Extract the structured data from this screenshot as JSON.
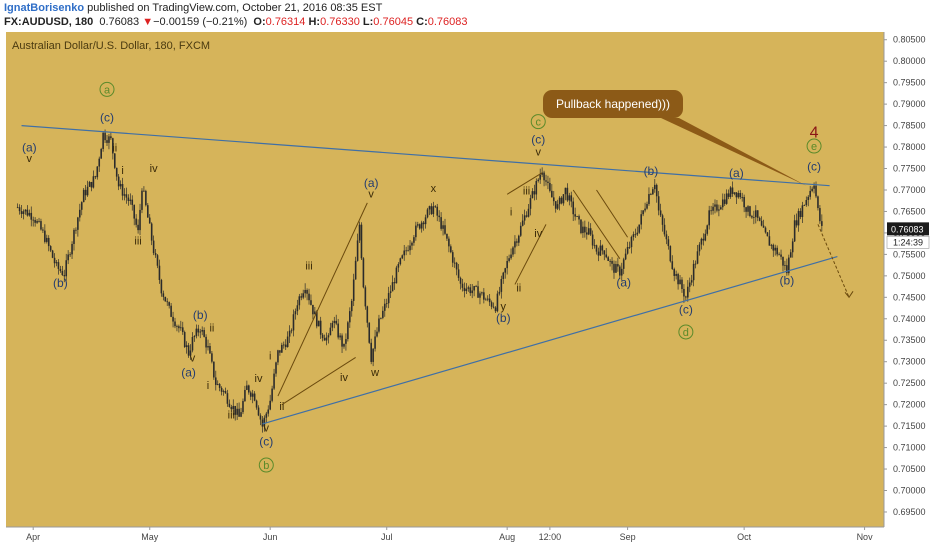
{
  "header": {
    "author": "IgnatBorisenko",
    "published_text": "published on TradingView.com, October 21, 2016 08:35 EST",
    "symbol": "FX:AUDUSD, 180",
    "last": "0.76083",
    "change_arrow": "▼",
    "change": "−0.00159 (−0.21%)",
    "o_label": "O:",
    "o_value": "0.76314",
    "h_label": "H:",
    "h_value": "0.76330",
    "l_label": "L:",
    "l_value": "0.76045",
    "c_label": "C:",
    "c_value": "0.76083"
  },
  "colors": {
    "background": "#d6b45a",
    "candle": "#2b2b2b",
    "trendline": "#3f6fa6",
    "wave_line": "#6b4a0e",
    "wave_label": "#253d70",
    "minor_label": "#3a2a08",
    "circle_label": "#5b8a2a",
    "callout_fill": "#8c5a17",
    "callout_text": "#ffffff",
    "wave4_label": "#8a1616",
    "last_price_box": "#1b1b1b",
    "axis_text": "#444444"
  },
  "chart_data": {
    "type": "candlestick",
    "title": "Australian Dollar/U.S. Dollar, 180, FXCM",
    "xlabel": "",
    "ylabel": "",
    "x_ticks": [
      "Apr",
      "May",
      "Jun",
      "Jul",
      "Aug",
      "12:00",
      "Sep",
      "Oct",
      "Nov"
    ],
    "y_ticks": [
      "0.80500",
      "0.80000",
      "0.79500",
      "0.79000",
      "0.78500",
      "0.78000",
      "0.77500",
      "0.77000",
      "0.76500",
      "0.76000",
      "0.75500",
      "0.75000",
      "0.74500",
      "0.74000",
      "0.73500",
      "0.73000",
      "0.72500",
      "0.72000",
      "0.71500",
      "0.71000",
      "0.70500",
      "0.70000",
      "0.69500"
    ],
    "ylim": [
      0.6915,
      0.8068
    ],
    "last_price": "0.76083",
    "countdown": "1:24:39",
    "price_path": [
      [
        "2016-03-28",
        0.766
      ],
      [
        "2016-04-01",
        0.764
      ],
      [
        "2016-04-04",
        0.759
      ],
      [
        "2016-04-07",
        0.752
      ],
      [
        "2016-04-09",
        0.7505
      ],
      [
        "2016-04-12",
        0.762
      ],
      [
        "2016-04-14",
        0.769
      ],
      [
        "2016-04-17",
        0.773
      ],
      [
        "2016-04-19",
        0.783
      ],
      [
        "2016-04-21",
        0.7815
      ],
      [
        "2016-04-23",
        0.771
      ],
      [
        "2016-04-26",
        0.767
      ],
      [
        "2016-04-28",
        0.76
      ],
      [
        "2016-04-29",
        0.771
      ],
      [
        "2016-05-02",
        0.756
      ],
      [
        "2016-05-04",
        0.747
      ],
      [
        "2016-05-06",
        0.742
      ],
      [
        "2016-05-09",
        0.737
      ],
      [
        "2016-05-11",
        0.732
      ],
      [
        "2016-05-12",
        0.735
      ],
      [
        "2016-05-14",
        0.738
      ],
      [
        "2016-05-16",
        0.733
      ],
      [
        "2016-05-18",
        0.725
      ],
      [
        "2016-05-20",
        0.723
      ],
      [
        "2016-05-22",
        0.72
      ],
      [
        "2016-05-24",
        0.717
      ],
      [
        "2016-05-26",
        0.724
      ],
      [
        "2016-05-28",
        0.722
      ],
      [
        "2016-05-30",
        0.715
      ],
      [
        "2016-06-01",
        0.721
      ],
      [
        "2016-06-03",
        0.732
      ],
      [
        "2016-06-06",
        0.736
      ],
      [
        "2016-06-08",
        0.744
      ],
      [
        "2016-06-10",
        0.748
      ],
      [
        "2016-06-12",
        0.742
      ],
      [
        "2016-06-14",
        0.737
      ],
      [
        "2016-06-16",
        0.735
      ],
      [
        "2016-06-17",
        0.74
      ],
      [
        "2016-06-20",
        0.733
      ],
      [
        "2016-06-22",
        0.744
      ],
      [
        "2016-06-24",
        0.762
      ],
      [
        "2016-06-25",
        0.748
      ],
      [
        "2016-06-27",
        0.731
      ],
      [
        "2016-06-29",
        0.739
      ],
      [
        "2016-07-01",
        0.744
      ],
      [
        "2016-07-04",
        0.752
      ],
      [
        "2016-07-06",
        0.756
      ],
      [
        "2016-07-08",
        0.76
      ],
      [
        "2016-07-11",
        0.764
      ],
      [
        "2016-07-13",
        0.766
      ],
      [
        "2016-07-15",
        0.762
      ],
      [
        "2016-07-18",
        0.754
      ],
      [
        "2016-07-20",
        0.748
      ],
      [
        "2016-07-22",
        0.747
      ],
      [
        "2016-07-25",
        0.746
      ],
      [
        "2016-07-27",
        0.744
      ],
      [
        "2016-07-29",
        0.743
      ],
      [
        "2016-08-01",
        0.753
      ],
      [
        "2016-08-02",
        0.756
      ],
      [
        "2016-08-04",
        0.76
      ],
      [
        "2016-08-06",
        0.765
      ],
      [
        "2016-08-08",
        0.77
      ],
      [
        "2016-08-10",
        0.775
      ],
      [
        "2016-08-12",
        0.769
      ],
      [
        "2016-08-14",
        0.766
      ],
      [
        "2016-08-16",
        0.77
      ],
      [
        "2016-08-18",
        0.765
      ],
      [
        "2016-08-20",
        0.761
      ],
      [
        "2016-08-22",
        0.76
      ],
      [
        "2016-08-24",
        0.756
      ],
      [
        "2016-08-26",
        0.756
      ],
      [
        "2016-08-28",
        0.752
      ],
      [
        "2016-08-30",
        0.751
      ],
      [
        "2016-09-01",
        0.756
      ],
      [
        "2016-09-04",
        0.762
      ],
      [
        "2016-09-06",
        0.768
      ],
      [
        "2016-09-08",
        0.772
      ],
      [
        "2016-09-09",
        0.765
      ],
      [
        "2016-09-11",
        0.758
      ],
      [
        "2016-09-13",
        0.751
      ],
      [
        "2016-09-15",
        0.747
      ],
      [
        "2016-09-16",
        0.745
      ],
      [
        "2016-09-18",
        0.752
      ],
      [
        "2016-09-20",
        0.758
      ],
      [
        "2016-09-22",
        0.764
      ],
      [
        "2016-09-24",
        0.766
      ],
      [
        "2016-09-26",
        0.768
      ],
      [
        "2016-09-28",
        0.77
      ],
      [
        "2016-09-30",
        0.769
      ],
      [
        "2016-10-02",
        0.765
      ],
      [
        "2016-10-04",
        0.764
      ],
      [
        "2016-10-06",
        0.76
      ],
      [
        "2016-10-08",
        0.757
      ],
      [
        "2016-10-10",
        0.755
      ],
      [
        "2016-10-12",
        0.751
      ],
      [
        "2016-10-14",
        0.762
      ],
      [
        "2016-10-16",
        0.766
      ],
      [
        "2016-10-18",
        0.77
      ],
      [
        "2016-10-19",
        0.772
      ],
      [
        "2016-10-20",
        0.765
      ],
      [
        "2016-10-21",
        0.7608
      ]
    ],
    "trendlines": [
      {
        "name": "upper",
        "points": [
          [
            "2016-03-29",
            0.785
          ],
          [
            "2016-10-23",
            0.771
          ]
        ]
      },
      {
        "name": "lower",
        "points": [
          [
            "2016-05-30",
            0.7155
          ],
          [
            "2016-10-25",
            0.7545
          ]
        ]
      }
    ],
    "wave_lines": [
      [
        [
          "2016-06-03",
          0.722
        ],
        [
          "2016-06-26",
          0.767
        ]
      ],
      [
        [
          "2016-06-04",
          0.72
        ],
        [
          "2016-06-23",
          0.731
        ]
      ],
      [
        [
          "2016-08-01",
          0.769
        ],
        [
          "2016-08-10",
          0.774
        ]
      ],
      [
        [
          "2016-08-03",
          0.748
        ],
        [
          "2016-08-11",
          0.762
        ]
      ],
      [
        [
          "2016-08-18",
          0.77
        ],
        [
          "2016-08-30",
          0.754
        ]
      ],
      [
        [
          "2016-08-24",
          0.77
        ],
        [
          "2016-09-01",
          0.759
        ]
      ]
    ],
    "projection": [
      [
        "2016-10-20",
        0.762
      ],
      [
        "2016-10-28",
        0.745
      ]
    ],
    "wave_labels": [
      {
        "text": "(a)",
        "x": "2016-03-31",
        "y": 0.779,
        "style": "wave"
      },
      {
        "text": "v",
        "x": "2016-03-31",
        "y": 0.7765,
        "style": "minor"
      },
      {
        "text": "(b)",
        "x": "2016-04-08",
        "y": 0.7474,
        "style": "wave"
      },
      {
        "text": "a",
        "x": "2016-04-20",
        "y": 0.7925,
        "style": "circle"
      },
      {
        "text": "(c)",
        "x": "2016-04-20",
        "y": 0.786,
        "style": "wave"
      },
      {
        "text": "ii",
        "x": "2016-04-22",
        "y": 0.779,
        "style": "minor"
      },
      {
        "text": "i",
        "x": "2016-04-24",
        "y": 0.7737,
        "style": "minor"
      },
      {
        "text": "iii",
        "x": "2016-04-28",
        "y": 0.7573,
        "style": "minor"
      },
      {
        "text": "iv",
        "x": "2016-05-02",
        "y": 0.7742,
        "style": "minor"
      },
      {
        "text": "(b)",
        "x": "2016-05-14",
        "y": 0.74,
        "style": "wave"
      },
      {
        "text": "ii",
        "x": "2016-05-17",
        "y": 0.737,
        "style": "minor"
      },
      {
        "text": "v",
        "x": "2016-05-12",
        "y": 0.73,
        "style": "minor"
      },
      {
        "text": "(a)",
        "x": "2016-05-11",
        "y": 0.7265,
        "style": "wave"
      },
      {
        "text": "i",
        "x": "2016-05-16",
        "y": 0.7237,
        "style": "minor"
      },
      {
        "text": "iii",
        "x": "2016-05-22",
        "y": 0.7168,
        "style": "minor"
      },
      {
        "text": "iv",
        "x": "2016-05-29",
        "y": 0.7253,
        "style": "minor"
      },
      {
        "text": "v",
        "x": "2016-05-31",
        "y": 0.7138,
        "style": "minor"
      },
      {
        "text": "(c)",
        "x": "2016-05-31",
        "y": 0.7105,
        "style": "wave"
      },
      {
        "text": "b",
        "x": "2016-05-31",
        "y": 0.705,
        "style": "circle"
      },
      {
        "text": "i",
        "x": "2016-06-01",
        "y": 0.7305,
        "style": "minor"
      },
      {
        "text": "ii",
        "x": "2016-06-04",
        "y": 0.7187,
        "style": "minor"
      },
      {
        "text": "iii",
        "x": "2016-06-11",
        "y": 0.7515,
        "style": "minor"
      },
      {
        "text": "iv",
        "x": "2016-06-20",
        "y": 0.7255,
        "style": "minor"
      },
      {
        "text": "(a)",
        "x": "2016-06-27",
        "y": 0.7707,
        "style": "wave"
      },
      {
        "text": "v",
        "x": "2016-06-27",
        "y": 0.7683,
        "style": "minor"
      },
      {
        "text": "w",
        "x": "2016-06-28",
        "y": 0.7267,
        "style": "minor"
      },
      {
        "text": "x",
        "x": "2016-07-13",
        "y": 0.7695,
        "style": "minor"
      },
      {
        "text": "y",
        "x": "2016-07-31",
        "y": 0.742,
        "style": "minor"
      },
      {
        "text": "(b)",
        "x": "2016-07-31",
        "y": 0.7393,
        "style": "wave"
      },
      {
        "text": "i",
        "x": "2016-08-02",
        "y": 0.764,
        "style": "minor"
      },
      {
        "text": "ii",
        "x": "2016-08-04",
        "y": 0.7463,
        "style": "minor"
      },
      {
        "text": "iii",
        "x": "2016-08-06",
        "y": 0.769,
        "style": "minor"
      },
      {
        "text": "iv",
        "x": "2016-08-09",
        "y": 0.759,
        "style": "minor"
      },
      {
        "text": "c",
        "x": "2016-08-09",
        "y": 0.785,
        "style": "circle"
      },
      {
        "text": "(c)",
        "x": "2016-08-09",
        "y": 0.7808,
        "style": "wave"
      },
      {
        "text": "v",
        "x": "2016-08-09",
        "y": 0.778,
        "style": "minor"
      },
      {
        "text": "(a)",
        "x": "2016-08-31",
        "y": 0.7475,
        "style": "wave"
      },
      {
        "text": "(b)",
        "x": "2016-09-07",
        "y": 0.7735,
        "style": "wave"
      },
      {
        "text": "(c)",
        "x": "2016-09-16",
        "y": 0.7412,
        "style": "wave"
      },
      {
        "text": "d",
        "x": "2016-09-16",
        "y": 0.736,
        "style": "circle"
      },
      {
        "text": "(a)",
        "x": "2016-09-29",
        "y": 0.773,
        "style": "wave"
      },
      {
        "text": "(b)",
        "x": "2016-10-12",
        "y": 0.748,
        "style": "wave"
      },
      {
        "text": "e",
        "x": "2016-10-19",
        "y": 0.7793,
        "style": "circle"
      },
      {
        "text": "(c)",
        "x": "2016-10-19",
        "y": 0.7745,
        "style": "wave"
      },
      {
        "text": "4",
        "x": "2016-10-19",
        "y": 0.7822,
        "style": "big"
      }
    ],
    "callout": {
      "text": "Pullback happened)))",
      "pointer_x": "2016-10-17",
      "pointer_y": 0.771
    }
  }
}
